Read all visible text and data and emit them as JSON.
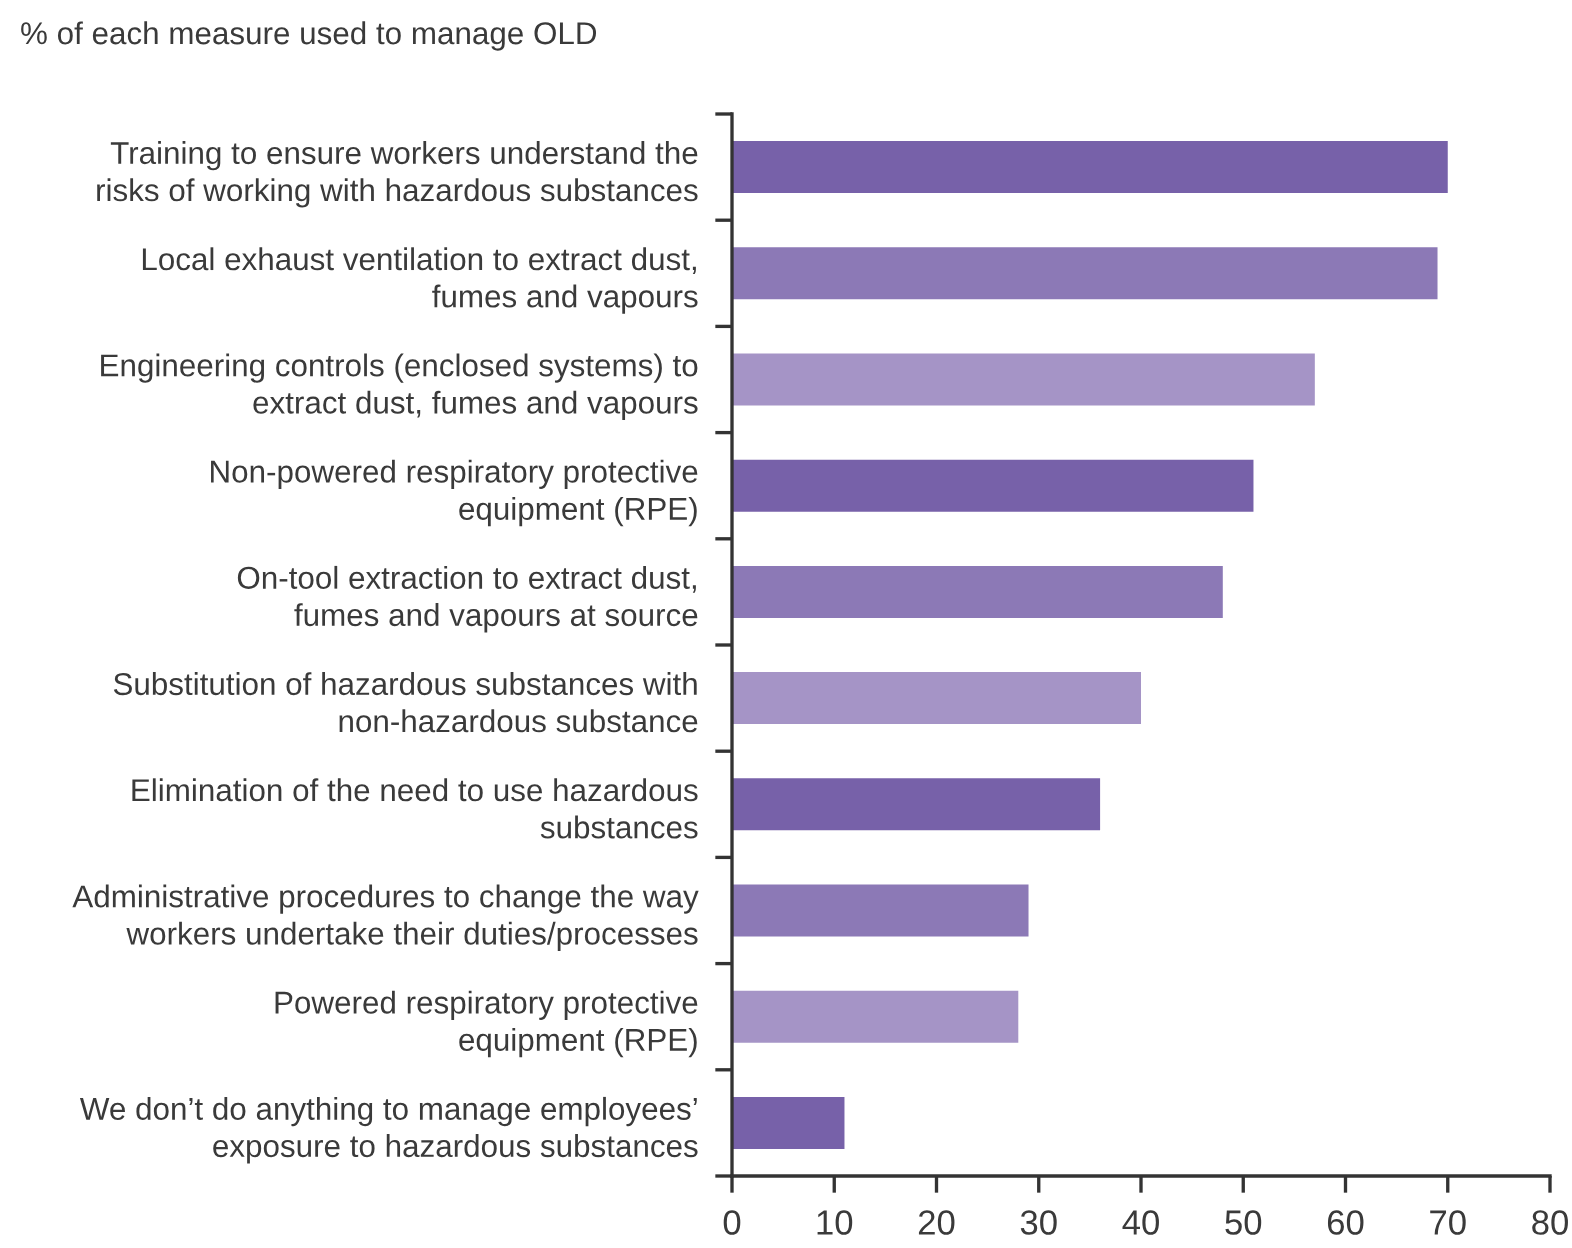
{
  "chart_data": {
    "type": "bar",
    "orientation": "horizontal",
    "title": "% of each measure used to manage OLD",
    "categories": [
      "Training to ensure workers understand the\nrisks of working with hazardous substances",
      "Local exhaust ventilation to extract dust,\nfumes and vapours",
      "Engineering controls (enclosed systems) to\nextract dust, fumes and vapours",
      "Non-powered respiratory protective\nequipment (RPE)",
      "On-tool extraction to extract dust,\nfumes and vapours at source",
      "Substitution of hazardous substances with\nnon-hazardous substance",
      "Elimination of the need to use hazardous\nsubstances",
      "Administrative procedures to change the way\nworkers undertake their duties/processes",
      "Powered respiratory protective\nequipment (RPE)",
      "We don’t do anything to manage employees’\nexposure to hazardous substances"
    ],
    "values": [
      70,
      69,
      57,
      51,
      48,
      40,
      36,
      29,
      28,
      11
    ],
    "colors": [
      "#7761a9",
      "#8c79b6",
      "#a594c6",
      "#7761a9",
      "#8c79b6",
      "#a594c6",
      "#7761a9",
      "#8c79b6",
      "#a594c6",
      "#7761a9"
    ],
    "xlim": [
      0,
      80
    ],
    "xticks": [
      0,
      10,
      20,
      30,
      40,
      50,
      60,
      70,
      80
    ]
  }
}
